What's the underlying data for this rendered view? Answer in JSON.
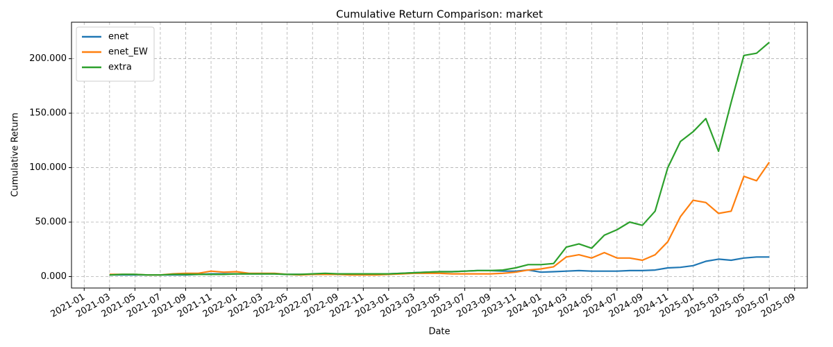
{
  "chart_data": {
    "type": "line",
    "title": "Cumulative Return Comparison: market",
    "x_label": "Date",
    "y_label": "Cumulative Return",
    "x": [
      "2021-03",
      "2021-04",
      "2021-05",
      "2021-06",
      "2021-07",
      "2021-08",
      "2021-09",
      "2021-10",
      "2021-11",
      "2021-12",
      "2022-01",
      "2022-02",
      "2022-03",
      "2022-04",
      "2022-05",
      "2022-06",
      "2022-07",
      "2022-08",
      "2022-09",
      "2022-10",
      "2022-11",
      "2022-12",
      "2023-01",
      "2023-02",
      "2023-03",
      "2023-04",
      "2023-05",
      "2023-06",
      "2023-07",
      "2023-08",
      "2023-09",
      "2023-10",
      "2023-11",
      "2023-12",
      "2024-01",
      "2024-02",
      "2024-03",
      "2024-04",
      "2024-05",
      "2024-06",
      "2024-07",
      "2024-08",
      "2024-09",
      "2024-10",
      "2024-11",
      "2024-12",
      "2025-01",
      "2025-02",
      "2025-03",
      "2025-04",
      "2025-05",
      "2025-06",
      "2025-07"
    ],
    "series": [
      {
        "name": "enet",
        "color": "#1f77b4",
        "values": [
          1.5,
          1.5,
          1.5,
          1.5,
          1.5,
          1.5,
          1.5,
          2,
          2.5,
          2.5,
          2.5,
          2.5,
          2.5,
          2.5,
          2,
          2,
          2,
          2,
          2,
          2,
          2,
          2.5,
          2.5,
          3,
          3.5,
          4,
          4.5,
          4.5,
          5,
          5.5,
          5.5,
          5,
          5,
          6,
          4,
          4.5,
          5,
          5.5,
          5,
          5,
          5,
          5.5,
          5.5,
          6,
          8,
          8.5,
          10,
          14,
          16,
          15,
          17,
          18,
          18
        ]
      },
      {
        "name": "enet_EW",
        "color": "#ff7f0e",
        "values": [
          2,
          2,
          2,
          1.5,
          1.5,
          2.5,
          3,
          3,
          5,
          4,
          4.5,
          3,
          3,
          3,
          2,
          1.5,
          2,
          2,
          2,
          1.5,
          1.5,
          1.5,
          2,
          2.5,
          3,
          3,
          3,
          2.5,
          2.5,
          2.5,
          2.5,
          3,
          4,
          6,
          7,
          9,
          18,
          20,
          17,
          22,
          17,
          17,
          15,
          20,
          32,
          55,
          70,
          68,
          58,
          60,
          92,
          88,
          105
        ]
      },
      {
        "name": "extra",
        "color": "#2ca02c",
        "values": [
          1.5,
          2,
          2,
          1.5,
          1.5,
          2,
          2,
          2,
          2,
          2,
          2.5,
          2.5,
          2.5,
          2.5,
          2,
          2,
          2.5,
          3,
          2.5,
          2.5,
          2.5,
          2.5,
          2.5,
          3,
          3.5,
          4,
          4.5,
          4.5,
          5,
          5.5,
          5.5,
          6,
          8,
          11,
          11,
          12,
          27,
          30,
          26,
          38,
          43,
          50,
          47,
          60,
          100,
          124,
          133,
          145,
          115,
          160,
          203,
          205,
          215
        ]
      }
    ],
    "xlim": [
      "2020-12",
      "2025-10"
    ],
    "xticks": [
      "2021-01",
      "2021-03",
      "2021-05",
      "2021-07",
      "2021-09",
      "2021-11",
      "2022-01",
      "2022-03",
      "2022-05",
      "2022-07",
      "2022-09",
      "2022-11",
      "2023-01",
      "2023-03",
      "2023-05",
      "2023-07",
      "2023-09",
      "2023-11",
      "2024-01",
      "2024-03",
      "2024-05",
      "2024-07",
      "2024-09",
      "2024-11",
      "2025-01",
      "2025-03",
      "2025-05",
      "2025-07",
      "2025-09"
    ],
    "ylim": [
      -10.5,
      233.5
    ],
    "yticks": [
      {
        "value": 0,
        "label": "0.000"
      },
      {
        "value": 50,
        "label": "50.000"
      },
      {
        "value": 100,
        "label": "100.000"
      },
      {
        "value": 150,
        "label": "150.000"
      },
      {
        "value": 200,
        "label": "200.000"
      }
    ],
    "grid": true,
    "legend": "upper left"
  }
}
